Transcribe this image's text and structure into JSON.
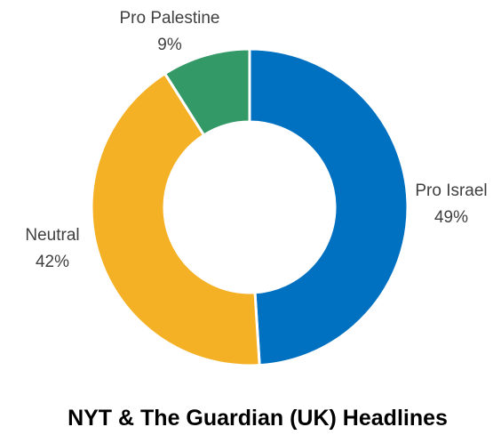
{
  "chart_data": {
    "type": "pie",
    "subtype": "donut",
    "title": "NYT & The Guardian (UK) Headlines",
    "slices": [
      {
        "label": "Pro Israel",
        "value": 49,
        "value_label": "49%",
        "color": "#0070c0"
      },
      {
        "label": "Neutral",
        "value": 42,
        "value_label": "42%",
        "color": "#f4b125"
      },
      {
        "label": "Pro Palestine",
        "value": 9,
        "value_label": "9%",
        "color": "#339966"
      }
    ]
  }
}
